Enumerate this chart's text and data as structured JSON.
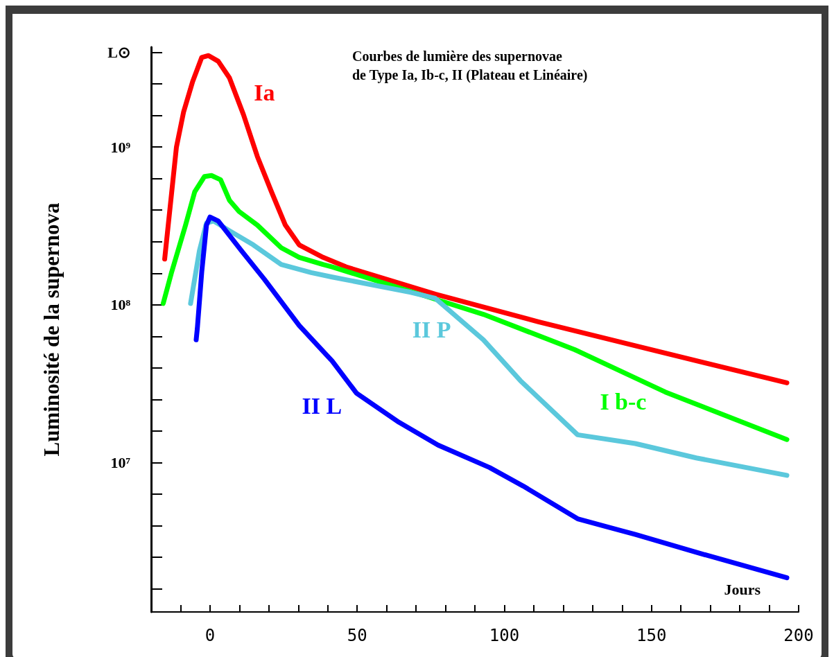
{
  "chart_data": {
    "type": "line",
    "title": "Courbes de lumière des supernovae\nde Type Ia, Ib-c, II (Plateau et Linéaire)",
    "xlabel": "Jours",
    "ylabel": "Luminosité de la supernova",
    "log": "y",
    "xlim": [
      -20,
      200
    ],
    "xticks": [
      {
        "value": -10,
        "label": null
      },
      0,
      {
        "value": 10,
        "label": null
      },
      {
        "value": 20,
        "label": null
      },
      {
        "value": 30,
        "label": null
      },
      {
        "value": 40,
        "label": null
      },
      50,
      {
        "value": 60,
        "label": null
      },
      {
        "value": 70,
        "label": null
      },
      {
        "value": 80,
        "label": null
      },
      {
        "value": 90,
        "label": null
      },
      100,
      {
        "value": 110,
        "label": null
      },
      {
        "value": 120,
        "label": null
      },
      {
        "value": 130,
        "label": null
      },
      {
        "value": 140,
        "label": null
      },
      150,
      {
        "value": 160,
        "label": null
      },
      {
        "value": 170,
        "label": null
      },
      {
        "value": 180,
        "label": null
      },
      {
        "value": 190,
        "label": null
      },
      200
    ],
    "ylim": [
      1130000,
      4300000000
    ],
    "yticks": [
      {
        "value": 1585000,
        "label": null
      },
      {
        "value": 2512000,
        "label": null
      },
      {
        "value": 3981000,
        "label": null
      },
      {
        "value": 6310000,
        "label": null
      },
      {
        "value": 10000000,
        "label": "10⁷"
      },
      {
        "value": 15850000,
        "label": null
      },
      {
        "value": 25120000,
        "label": null
      },
      {
        "value": 39810000,
        "label": null
      },
      {
        "value": 63100000,
        "label": null
      },
      {
        "value": 100000000,
        "label": "10⁸"
      },
      {
        "value": 158500000,
        "label": null
      },
      {
        "value": 251200000,
        "label": null
      },
      {
        "value": 398100000,
        "label": null
      },
      {
        "value": 631000000,
        "label": null
      },
      {
        "value": 1000000000,
        "label": "10⁹"
      },
      {
        "value": 1585000000,
        "label": null
      },
      {
        "value": 2512000000,
        "label": null
      },
      {
        "value": 3981000000,
        "label": "L⊙"
      }
    ],
    "series": [
      {
        "name": "Ia",
        "color": "#ff0000",
        "x": [
          -15.4,
          -14.7,
          -11.4,
          -9.0,
          -5.9,
          -2.8,
          -0.5,
          2.8,
          6.6,
          11.4,
          16.1,
          20.9,
          25.6,
          30.3,
          38.4,
          46.2,
          76.5,
          111.6,
          144.5,
          196
        ],
        "values": [
          195000000,
          260000000,
          1000000000,
          1660000000,
          2600000000,
          3700000000,
          3800000000,
          3500000000,
          2750000000,
          1600000000,
          870000000,
          520000000,
          320000000,
          240000000,
          200000000,
          174000000,
          117000000,
          78000000,
          55000000,
          32000000
        ]
      },
      {
        "name": "I b-c",
        "color": "#00ff00",
        "x": [
          -15.9,
          -13.0,
          -8.3,
          -5.2,
          -1.9,
          0.5,
          3.6,
          6.6,
          9.9,
          16.1,
          24.2,
          30.3,
          38.4,
          41.5,
          72.3,
          92.9,
          123.9,
          154.7,
          196
        ],
        "values": [
          102000000,
          162000000,
          320000000,
          520000000,
          650000000,
          660000000,
          620000000,
          460000000,
          390000000,
          320000000,
          230000000,
          200000000,
          180000000,
          174000000,
          115000000,
          87000000,
          52000000,
          28000000,
          14000000
        ]
      },
      {
        "name": "II P",
        "color": "#5bc8dc",
        "x": [
          -6.6,
          -3.6,
          -1.2,
          1.2,
          6.6,
          14.7,
          24.2,
          34.4,
          41.5,
          68.2,
          76.5,
          92.9,
          105.5,
          124.9,
          144.5,
          165.2,
          196
        ],
        "values": [
          102000000,
          220000000,
          330000000,
          340000000,
          295000000,
          240000000,
          180000000,
          160000000,
          150000000,
          120000000,
          110000000,
          60000000,
          33000000,
          15000000,
          13200000,
          10700000,
          8300000
        ]
      },
      {
        "name": "II L",
        "color": "#0000ff",
        "x": [
          -4.7,
          -4.3,
          -2.8,
          -1.2,
          0,
          2.8,
          10.7,
          18.5,
          30.3,
          41.5,
          49.8,
          64.2,
          77.5,
          95.0,
          106.4,
          124.9,
          144.5,
          165.2,
          196
        ],
        "values": [
          60000000,
          71000000,
          162000000,
          320000000,
          360000000,
          340000000,
          220000000,
          145000000,
          74000000,
          44000000,
          27500000,
          18000000,
          12900000,
          9300000,
          7100000,
          4400000,
          3500000,
          2700000,
          1860000
        ]
      }
    ]
  }
}
